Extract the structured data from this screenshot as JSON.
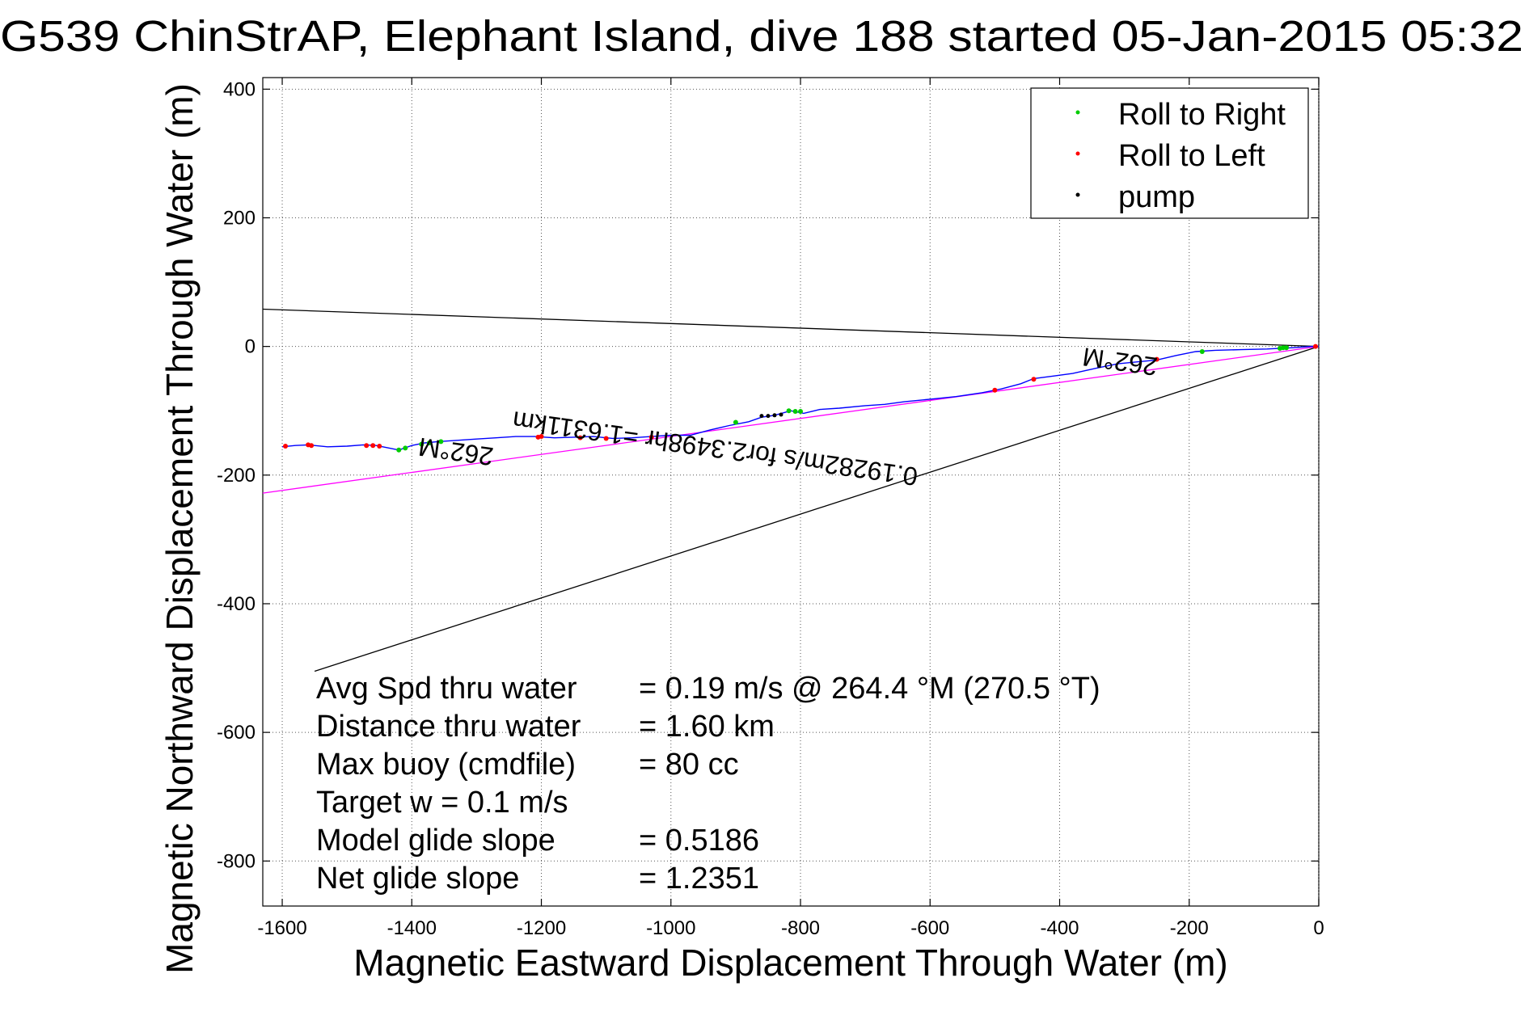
{
  "chart_data": {
    "type": "line",
    "title": "G539 ChinStrAP, Elephant Island, dive 188 started 05-Jan-2015 05:32",
    "xlabel": "Magnetic Eastward Displacement Through Water (m)",
    "ylabel": "Magnetic Northward Displacement Through Water (m)",
    "xlim": [
      -1630,
      0
    ],
    "ylim": [
      -870,
      418
    ],
    "x_ticks": [
      -1600,
      -1400,
      -1200,
      -1000,
      -800,
      -600,
      -400,
      -200,
      0
    ],
    "y_ticks": [
      400,
      200,
      0,
      -200,
      -400,
      -600,
      -800
    ],
    "grid": true,
    "legend_position": "top-right",
    "legend": [
      {
        "label": "Roll to Right",
        "color": "#00cc00"
      },
      {
        "label": "Roll to Left",
        "color": "#ff0000"
      },
      {
        "label": "pump",
        "color": "#000000"
      }
    ],
    "track": {
      "name": "",
      "color": "#0000ff",
      "points": [
        [
          -1600,
          -156
        ],
        [
          -1580,
          -154
        ],
        [
          -1560,
          -153
        ],
        [
          -1530,
          -156
        ],
        [
          -1500,
          -155
        ],
        [
          -1475,
          -153
        ],
        [
          -1455,
          -154
        ],
        [
          -1440,
          -157
        ],
        [
          -1420,
          -161
        ],
        [
          -1400,
          -154
        ],
        [
          -1380,
          -150
        ],
        [
          -1360,
          -148
        ],
        [
          -1330,
          -146
        ],
        [
          -1300,
          -144
        ],
        [
          -1270,
          -142
        ],
        [
          -1240,
          -140
        ],
        [
          -1210,
          -140
        ],
        [
          -1180,
          -142
        ],
        [
          -1150,
          -141
        ],
        [
          -1120,
          -140
        ],
        [
          -1090,
          -143
        ],
        [
          -1060,
          -142
        ],
        [
          -1030,
          -140
        ],
        [
          -1000,
          -138
        ],
        [
          -970,
          -138
        ],
        [
          -940,
          -130
        ],
        [
          -910,
          -123
        ],
        [
          -880,
          -117
        ],
        [
          -860,
          -110
        ],
        [
          -840,
          -107
        ],
        [
          -815,
          -100
        ],
        [
          -795,
          -104
        ],
        [
          -770,
          -98
        ],
        [
          -740,
          -96
        ],
        [
          -700,
          -92
        ],
        [
          -670,
          -90
        ],
        [
          -640,
          -86
        ],
        [
          -600,
          -82
        ],
        [
          -560,
          -78
        ],
        [
          -520,
          -72
        ],
        [
          -490,
          -66
        ],
        [
          -460,
          -58
        ],
        [
          -440,
          -50
        ],
        [
          -410,
          -46
        ],
        [
          -380,
          -42
        ],
        [
          -340,
          -33
        ],
        [
          -310,
          -27
        ],
        [
          -280,
          -24
        ],
        [
          -250,
          -21
        ],
        [
          -220,
          -14
        ],
        [
          -190,
          -8
        ],
        [
          -160,
          -6
        ],
        [
          -120,
          -5
        ],
        [
          -80,
          -4
        ],
        [
          -40,
          -2
        ],
        [
          -10,
          0
        ],
        [
          0,
          0
        ]
      ]
    },
    "roll_right_points": [
      [
        -1420,
        -161
      ],
      [
        -1410,
        -158
      ],
      [
        -1385,
        -152
      ],
      [
        -1373,
        -150
      ],
      [
        -1355,
        -148
      ],
      [
        -900,
        -118
      ],
      [
        -818,
        -100
      ],
      [
        -808,
        -101
      ],
      [
        -800,
        -101
      ],
      [
        -180,
        -8
      ],
      [
        -60,
        -3
      ],
      [
        -55,
        -2
      ],
      [
        -50,
        -2
      ]
    ],
    "roll_left_points": [
      [
        -1595,
        -155
      ],
      [
        -1560,
        -153
      ],
      [
        -1555,
        -154
      ],
      [
        -1470,
        -154
      ],
      [
        -1460,
        -154
      ],
      [
        -1450,
        -155
      ],
      [
        -1205,
        -141
      ],
      [
        -1200,
        -140
      ],
      [
        -1140,
        -142
      ],
      [
        -1100,
        -143
      ],
      [
        -1030,
        -141
      ],
      [
        -500,
        -68
      ],
      [
        -440,
        -51
      ],
      [
        -250,
        -20
      ],
      [
        -5,
        0
      ]
    ],
    "pump_points": [
      [
        -860,
        -108
      ],
      [
        -850,
        -108
      ],
      [
        -840,
        -107
      ],
      [
        -830,
        -106
      ]
    ],
    "lines": [
      {
        "name": "",
        "color": "#000000",
        "x": [
          -1630,
          0
        ],
        "y": [
          58,
          0
        ]
      },
      {
        "name": "",
        "color": "#000000",
        "x": [
          -1550,
          0
        ],
        "y": [
          -505,
          0
        ]
      },
      {
        "name": "",
        "color": "#ff00ff",
        "x": [
          -1630,
          0
        ],
        "y": [
          -228,
          0
        ]
      }
    ],
    "rotated_labels": [
      {
        "text": "262°M",
        "x": -1330,
        "y": -150,
        "angle_deg": 188
      },
      {
        "text": "262°M",
        "x": -305,
        "y": -10,
        "angle_deg": 188
      },
      {
        "text": "0.19282m/s for2.3498hr =1.6311km",
        "x": -930,
        "y": -145,
        "angle_deg": 188
      }
    ],
    "annotations": [
      {
        "label": "Avg Spd thru water",
        "value": "=  0.19 m/s @ 264.4 °M (270.5 °T)"
      },
      {
        "label": "Distance thru water",
        "value": "=  1.60 km"
      },
      {
        "label": "Max buoy (cmdfile)",
        "value": "= 80 cc"
      },
      {
        "label": "Target w    = 0.1 m/s",
        "value": ""
      },
      {
        "label": "Model glide slope",
        "value": "= 0.5186"
      },
      {
        "label": "Net glide slope",
        "value": "= 1.2351"
      }
    ]
  }
}
